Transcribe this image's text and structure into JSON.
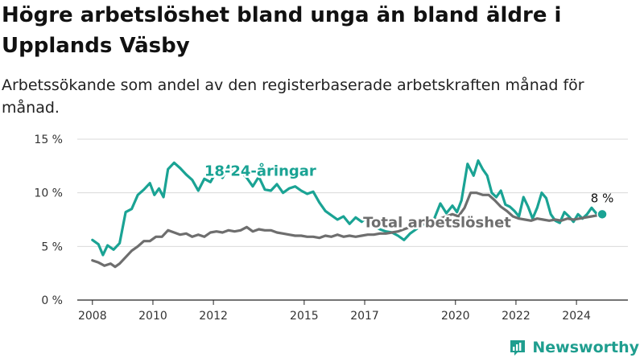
{
  "title": "Högre arbetslöshet bland unga än bland äldre i Upplands Väsby",
  "subtitle": "Arbetssökande som andel av den registerbaserade arbetskraften månad för månad.",
  "brand": {
    "name": "Newsworthy",
    "icon": "bar-chart-logo-icon",
    "color": "#1f9e8f"
  },
  "chart_data": {
    "type": "line",
    "title": "Högre arbetslöshet bland unga än bland äldre i Upplands Väsby",
    "subtitle": "Arbetssökande som andel av den registerbaserade arbetskraften månad för månad.",
    "xlabel": "",
    "ylabel": "",
    "x_range": [
      2007.5,
      2025.7
    ],
    "ylim": [
      0,
      15
    ],
    "y_ticks": [
      0,
      5,
      10,
      15
    ],
    "y_tick_labels": [
      "0 %",
      "5 %",
      "10 %",
      "15 %"
    ],
    "x_ticks": [
      2008,
      2010,
      2012,
      2015,
      2017,
      2020,
      2022,
      2024
    ],
    "x_tick_labels": [
      "2008",
      "2010",
      "2012",
      "2015",
      "2017",
      "2020",
      "2022",
      "2024"
    ],
    "grid": true,
    "end_label": "8 %",
    "series": [
      {
        "name": "18-24-åringar",
        "color": "#1aa394",
        "points": [
          [
            2008.0,
            5.6
          ],
          [
            2008.2,
            5.2
          ],
          [
            2008.35,
            4.2
          ],
          [
            2008.5,
            5.1
          ],
          [
            2008.7,
            4.7
          ],
          [
            2008.9,
            5.3
          ],
          [
            2009.1,
            8.2
          ],
          [
            2009.3,
            8.5
          ],
          [
            2009.5,
            9.8
          ],
          [
            2009.7,
            10.3
          ],
          [
            2009.9,
            10.9
          ],
          [
            2010.05,
            9.8
          ],
          [
            2010.2,
            10.4
          ],
          [
            2010.35,
            9.6
          ],
          [
            2010.5,
            12.2
          ],
          [
            2010.7,
            12.8
          ],
          [
            2010.9,
            12.3
          ],
          [
            2011.1,
            11.7
          ],
          [
            2011.3,
            11.2
          ],
          [
            2011.5,
            10.2
          ],
          [
            2011.7,
            11.3
          ],
          [
            2011.9,
            11.0
          ],
          [
            2012.1,
            12.0
          ],
          [
            2012.3,
            11.4
          ],
          [
            2012.5,
            12.5
          ],
          [
            2012.7,
            11.7
          ],
          [
            2012.9,
            12.0
          ],
          [
            2013.1,
            11.4
          ],
          [
            2013.3,
            10.6
          ],
          [
            2013.5,
            11.5
          ],
          [
            2013.7,
            10.3
          ],
          [
            2013.9,
            10.2
          ],
          [
            2014.1,
            10.8
          ],
          [
            2014.3,
            10.0
          ],
          [
            2014.5,
            10.4
          ],
          [
            2014.7,
            10.6
          ],
          [
            2014.9,
            10.2
          ],
          [
            2015.1,
            9.9
          ],
          [
            2015.3,
            10.1
          ],
          [
            2015.5,
            9.1
          ],
          [
            2015.7,
            8.3
          ],
          [
            2015.9,
            7.9
          ],
          [
            2016.1,
            7.5
          ],
          [
            2016.3,
            7.8
          ],
          [
            2016.5,
            7.1
          ],
          [
            2016.7,
            7.7
          ],
          [
            2016.9,
            7.3
          ],
          [
            2017.1,
            7.8
          ],
          [
            2017.3,
            6.9
          ],
          [
            2017.5,
            6.6
          ],
          [
            2017.7,
            6.4
          ],
          [
            2017.9,
            6.3
          ],
          [
            2018.1,
            6.0
          ],
          [
            2018.3,
            5.6
          ],
          [
            2018.5,
            6.2
          ],
          [
            2018.7,
            6.6
          ],
          [
            2018.9,
            7.0
          ],
          [
            2019.1,
            7.3
          ],
          [
            2019.3,
            7.6
          ],
          [
            2019.5,
            9.0
          ],
          [
            2019.7,
            8.1
          ],
          [
            2019.9,
            8.8
          ],
          [
            2020.05,
            8.2
          ],
          [
            2020.2,
            9.3
          ],
          [
            2020.4,
            12.7
          ],
          [
            2020.6,
            11.6
          ],
          [
            2020.75,
            13.0
          ],
          [
            2020.9,
            12.2
          ],
          [
            2021.05,
            11.6
          ],
          [
            2021.2,
            10.0
          ],
          [
            2021.35,
            9.6
          ],
          [
            2021.5,
            10.2
          ],
          [
            2021.65,
            8.9
          ],
          [
            2021.8,
            8.7
          ],
          [
            2021.95,
            8.3
          ],
          [
            2022.1,
            7.8
          ],
          [
            2022.25,
            9.6
          ],
          [
            2022.4,
            8.7
          ],
          [
            2022.55,
            7.6
          ],
          [
            2022.7,
            8.6
          ],
          [
            2022.85,
            10.0
          ],
          [
            2023.0,
            9.5
          ],
          [
            2023.15,
            8.0
          ],
          [
            2023.3,
            7.4
          ],
          [
            2023.45,
            7.2
          ],
          [
            2023.6,
            8.2
          ],
          [
            2023.75,
            7.8
          ],
          [
            2023.9,
            7.3
          ],
          [
            2024.05,
            8.0
          ],
          [
            2024.2,
            7.6
          ],
          [
            2024.35,
            8.0
          ],
          [
            2024.5,
            8.6
          ],
          [
            2024.65,
            8.1
          ],
          [
            2024.85,
            8.0
          ]
        ]
      },
      {
        "name": "Total arbetslöshet",
        "color": "#6e6e6e",
        "points": [
          [
            2008.0,
            3.7
          ],
          [
            2008.2,
            3.5
          ],
          [
            2008.4,
            3.2
          ],
          [
            2008.6,
            3.4
          ],
          [
            2008.75,
            3.1
          ],
          [
            2008.9,
            3.4
          ],
          [
            2009.1,
            4.0
          ],
          [
            2009.3,
            4.6
          ],
          [
            2009.5,
            5.0
          ],
          [
            2009.7,
            5.5
          ],
          [
            2009.9,
            5.5
          ],
          [
            2010.1,
            5.9
          ],
          [
            2010.3,
            5.9
          ],
          [
            2010.5,
            6.5
          ],
          [
            2010.7,
            6.3
          ],
          [
            2010.9,
            6.1
          ],
          [
            2011.1,
            6.2
          ],
          [
            2011.3,
            5.9
          ],
          [
            2011.5,
            6.1
          ],
          [
            2011.7,
            5.9
          ],
          [
            2011.9,
            6.3
          ],
          [
            2012.1,
            6.4
          ],
          [
            2012.3,
            6.3
          ],
          [
            2012.5,
            6.5
          ],
          [
            2012.7,
            6.4
          ],
          [
            2012.9,
            6.5
          ],
          [
            2013.1,
            6.8
          ],
          [
            2013.3,
            6.4
          ],
          [
            2013.5,
            6.6
          ],
          [
            2013.7,
            6.5
          ],
          [
            2013.9,
            6.5
          ],
          [
            2014.1,
            6.3
          ],
          [
            2014.3,
            6.2
          ],
          [
            2014.5,
            6.1
          ],
          [
            2014.7,
            6.0
          ],
          [
            2014.9,
            6.0
          ],
          [
            2015.1,
            5.9
          ],
          [
            2015.3,
            5.9
          ],
          [
            2015.5,
            5.8
          ],
          [
            2015.7,
            6.0
          ],
          [
            2015.9,
            5.9
          ],
          [
            2016.1,
            6.1
          ],
          [
            2016.3,
            5.9
          ],
          [
            2016.5,
            6.0
          ],
          [
            2016.7,
            5.9
          ],
          [
            2016.9,
            6.0
          ],
          [
            2017.1,
            6.1
          ],
          [
            2017.3,
            6.1
          ],
          [
            2017.5,
            6.2
          ],
          [
            2017.7,
            6.2
          ],
          [
            2017.9,
            6.3
          ],
          [
            2018.1,
            6.4
          ],
          [
            2018.3,
            6.6
          ],
          [
            2018.5,
            6.8
          ],
          [
            2018.7,
            7.0
          ],
          [
            2018.9,
            7.1
          ],
          [
            2019.1,
            7.3
          ],
          [
            2019.3,
            7.5
          ],
          [
            2019.5,
            7.6
          ],
          [
            2019.7,
            7.8
          ],
          [
            2019.9,
            8.0
          ],
          [
            2020.1,
            7.8
          ],
          [
            2020.3,
            8.6
          ],
          [
            2020.5,
            10.0
          ],
          [
            2020.7,
            10.0
          ],
          [
            2020.9,
            9.8
          ],
          [
            2021.1,
            9.8
          ],
          [
            2021.3,
            9.3
          ],
          [
            2021.5,
            8.7
          ],
          [
            2021.7,
            8.3
          ],
          [
            2021.9,
            7.8
          ],
          [
            2022.1,
            7.6
          ],
          [
            2022.3,
            7.5
          ],
          [
            2022.5,
            7.4
          ],
          [
            2022.7,
            7.6
          ],
          [
            2022.9,
            7.5
          ],
          [
            2023.1,
            7.4
          ],
          [
            2023.3,
            7.5
          ],
          [
            2023.5,
            7.4
          ],
          [
            2023.7,
            7.6
          ],
          [
            2023.9,
            7.5
          ],
          [
            2024.1,
            7.6
          ],
          [
            2024.3,
            7.7
          ],
          [
            2024.5,
            7.8
          ],
          [
            2024.7,
            7.9
          ],
          [
            2024.85,
            8.0
          ]
        ]
      }
    ]
  }
}
